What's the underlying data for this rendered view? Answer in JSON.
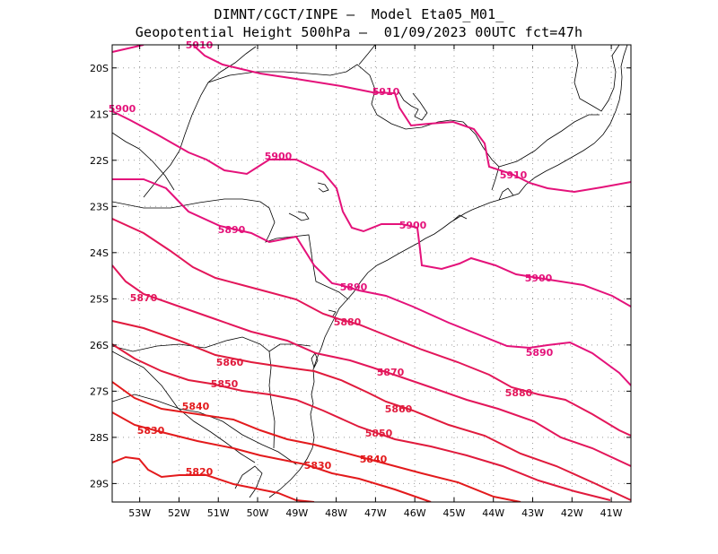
{
  "title": {
    "line1": "DIMNT/CGCT/INPE –  Model Eta05_M01_",
    "line2": "Geopotential Height 500hPa –  01/09/2023 00UTC fct=47h"
  },
  "map": {
    "lon_range": [
      -53.7,
      -40.5
    ],
    "lat_range": [
      -29.4,
      -19.5
    ],
    "lat_ticks": [
      "20S",
      "21S",
      "22S",
      "23S",
      "24S",
      "25S",
      "26S",
      "27S",
      "28S",
      "29S"
    ],
    "lon_ticks": [
      "53W",
      "52W",
      "51W",
      "50W",
      "49W",
      "48W",
      "47W",
      "46W",
      "45W",
      "44W",
      "43W",
      "42W",
      "41W"
    ]
  },
  "contours": [
    {
      "value": "5910",
      "color": "#e4127a",
      "labels": [
        "5910",
        "5910",
        "5910"
      ]
    },
    {
      "value": "5900",
      "color": "#e4127a",
      "labels": [
        "5900",
        "5900",
        "5900",
        "5900"
      ]
    },
    {
      "value": "5890",
      "color": "#e4127a",
      "labels": [
        "5890",
        "5890",
        "5890"
      ]
    },
    {
      "value": "5880",
      "color": "#e3165a",
      "labels": [
        "5880",
        "5880"
      ]
    },
    {
      "value": "5870",
      "color": "#e3165a",
      "labels": [
        "5870",
        "5870"
      ]
    },
    {
      "value": "5860",
      "color": "#e01a3c",
      "labels": [
        "5860",
        "5860"
      ]
    },
    {
      "value": "5850",
      "color": "#e01a3c",
      "labels": [
        "5850",
        "5850"
      ]
    },
    {
      "value": "5840",
      "color": "#e31a1c",
      "labels": [
        "5840",
        "5840"
      ]
    },
    {
      "value": "5830",
      "color": "#e31a1c",
      "labels": [
        "5830",
        "5830"
      ]
    },
    {
      "value": "5820",
      "color": "#e31a1c",
      "labels": [
        "5820"
      ]
    }
  ]
}
